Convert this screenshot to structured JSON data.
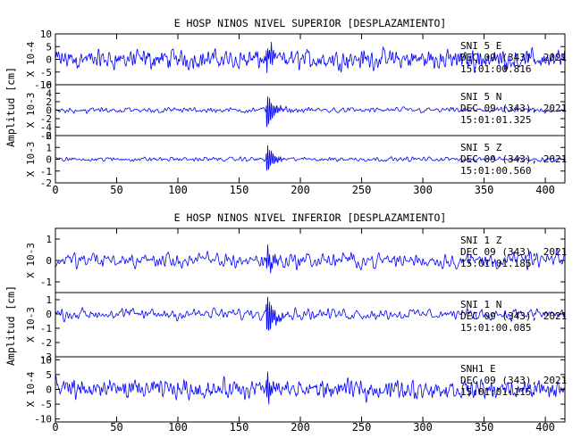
{
  "chart_data": [
    {
      "type": "line",
      "title": "E HOSP NINOS NIVEL SUPERIOR [DESPLAZAMIENTO]",
      "ylabel": "Amplitud [cm]",
      "xlim": [
        0,
        416
      ],
      "xticks": [
        0,
        50,
        100,
        150,
        200,
        250,
        300,
        350,
        400
      ],
      "event_time": 173,
      "line_color": "#0000ff",
      "panels": [
        {
          "multiplier": "X 10-4",
          "ylim": [
            -10,
            10
          ],
          "yticks": [
            10,
            5,
            0,
            -5,
            -10
          ],
          "peak": 10,
          "noise": 5.2,
          "event_amp": 6.5,
          "smooth": 3,
          "annotation": [
            "SNI 5  E",
            "DEC 09 (343), 2021",
            "15:01:00.816"
          ]
        },
        {
          "multiplier": "X 10-3",
          "ylim": [
            -6,
            6
          ],
          "yticks": [
            6,
            4,
            2,
            0,
            -2,
            -4,
            -6
          ],
          "peak": 6,
          "noise": 0.8,
          "event_amp": 4.8,
          "smooth": 5,
          "annotation": [
            "SNI 5  N",
            "DEC 09 (343), 2021",
            "15:01:01.325"
          ]
        },
        {
          "multiplier": "X 10-3",
          "ylim": [
            -2,
            2
          ],
          "yticks": [
            2,
            1,
            0,
            -1,
            -2
          ],
          "peak": 2,
          "noise": 0.25,
          "event_amp": 1.4,
          "smooth": 4,
          "annotation": [
            "SNI 5  Z",
            "DEC 09 (343), 2021",
            "15:01:00.560"
          ]
        }
      ]
    },
    {
      "type": "line",
      "title": "E HOSP NINOS NIVEL INFERIOR [DESPLAZAMIENTO]",
      "ylabel": "Amplitud [cm]",
      "xlim": [
        0,
        416
      ],
      "xticks": [
        0,
        50,
        100,
        150,
        200,
        250,
        300,
        350,
        400
      ],
      "event_time": 173,
      "line_color": "#0000ff",
      "panels": [
        {
          "multiplier": "X 10-3",
          "ylim": [
            -1.5,
            1.5
          ],
          "yticks": [
            1,
            0,
            -1
          ],
          "peak": 1.5,
          "noise": 0.55,
          "event_amp": 0.7,
          "smooth": 6,
          "annotation": [
            "SNI 1  Z",
            "DEC 09 (343), 2021",
            "15:01:01.185"
          ]
        },
        {
          "multiplier": "X 10-3",
          "ylim": [
            -3,
            1.5
          ],
          "yticks": [
            1,
            0,
            -1,
            -2,
            -3
          ],
          "peak": 1.5,
          "noise": 0.55,
          "event_amp": 1.8,
          "smooth": 6,
          "annotation": [
            "SNI 1  N",
            "DEC 09 (343), 2021",
            "15:01:00.085"
          ]
        },
        {
          "multiplier": "X 10-4",
          "ylim": [
            -11,
            11
          ],
          "yticks": [
            10,
            5,
            0,
            -5,
            -10
          ],
          "peak": 11,
          "noise": 4.5,
          "event_amp": 5.5,
          "smooth": 3,
          "annotation": [
            "SNH1  E",
            "DEC 09 (343), 2021",
            "15:01:01.115"
          ]
        }
      ]
    }
  ]
}
